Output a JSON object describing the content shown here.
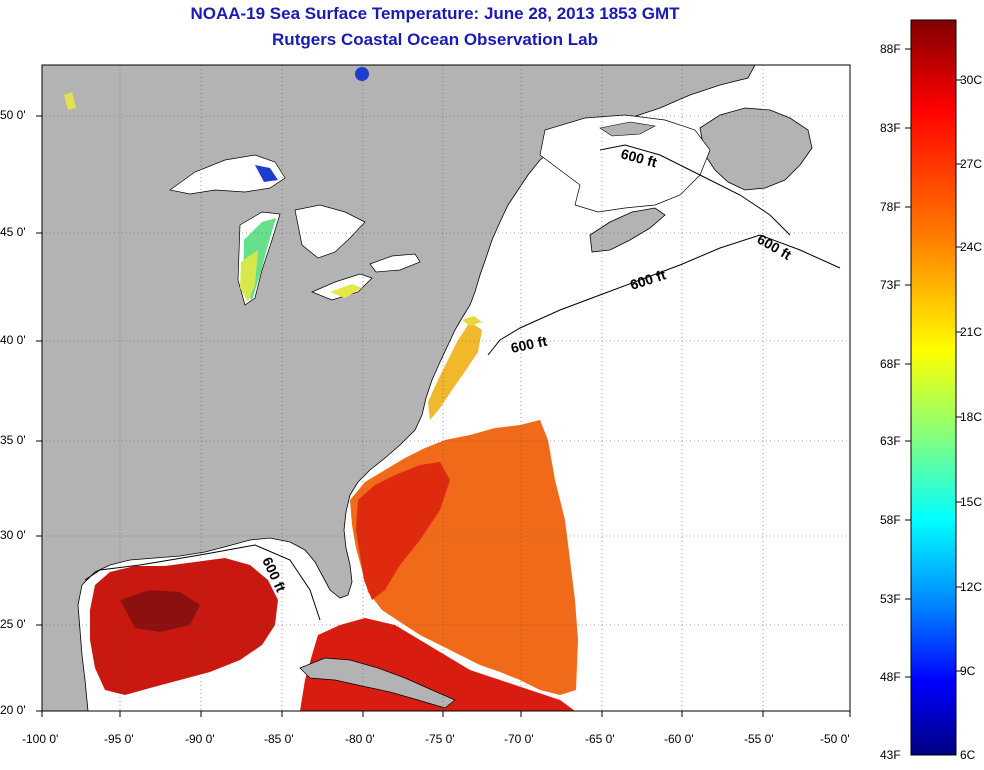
{
  "title": "NOAA-19 Sea Surface Temperature:  June 28, 2013 1853 GMT",
  "subtitle": "Rutgers Coastal Ocean Observation Lab",
  "map": {
    "lon_labels": [
      "-100 0'",
      "-95 0'",
      "-90 0'",
      "-85 0'",
      "-80 0'",
      "-75 0'",
      "-70 0'",
      "-65 0'",
      "-60 0'",
      "-55 0'",
      "-50 0'"
    ],
    "lat_labels": [
      "50 0'",
      "45 0'",
      "40 0'",
      "35 0'",
      "30 0'",
      "25 0'",
      "20 0'"
    ],
    "contour_labels": [
      "600 ft",
      "600 ft",
      "600 ft",
      "600 ft",
      "600 ft"
    ],
    "land_color": "#b3b3b3",
    "ocean_color": "#ffffff"
  },
  "colorbar": {
    "f_labels": [
      "88F",
      "83F",
      "78F",
      "73F",
      "68F",
      "63F",
      "58F",
      "53F",
      "48F",
      "43F"
    ],
    "c_labels": [
      "30C",
      "27C",
      "24C",
      "21C",
      "18C",
      "15C",
      "12C",
      "9C",
      "6C"
    ],
    "colors": [
      "#800000",
      "#ff0000",
      "#ff8000",
      "#ffff00",
      "#80ff80",
      "#00ffff",
      "#0080ff",
      "#0000ff",
      "#000080"
    ]
  }
}
